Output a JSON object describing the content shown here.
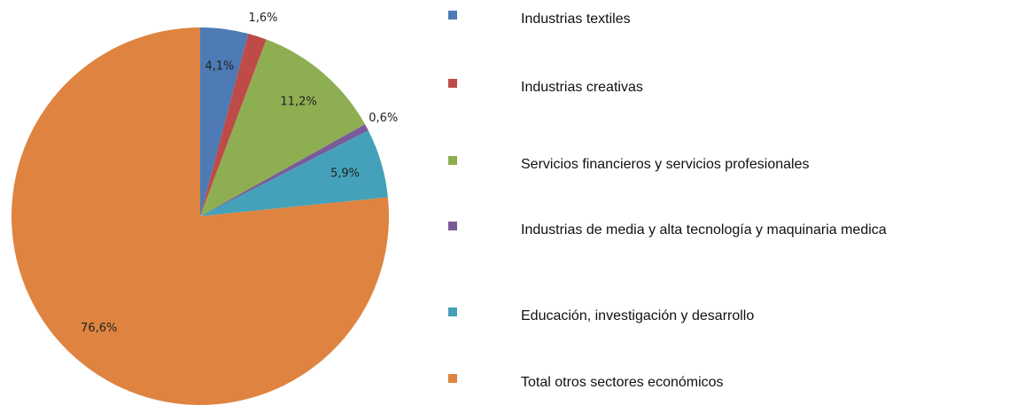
{
  "chart_data": {
    "type": "pie",
    "categories": [
      "Industrias textiles",
      "Industrias creativas",
      "Servicios financieros y servicios profesionales",
      "Industrias de media y alta tecnología y maquinaria medica",
      "Educación, investigación y desarrollo",
      "Total otros sectores económicos"
    ],
    "values": [
      4.1,
      1.6,
      11.2,
      0.6,
      5.9,
      76.6
    ],
    "value_labels": [
      "4,1%",
      "1,6%",
      "11,2%",
      "0,6%",
      "5,9%",
      "76,6%"
    ],
    "colors": [
      "#4e7ab5",
      "#be4b48",
      "#8eae52",
      "#7a5b99",
      "#44a1b9",
      "#de8440"
    ],
    "legend": "right"
  }
}
